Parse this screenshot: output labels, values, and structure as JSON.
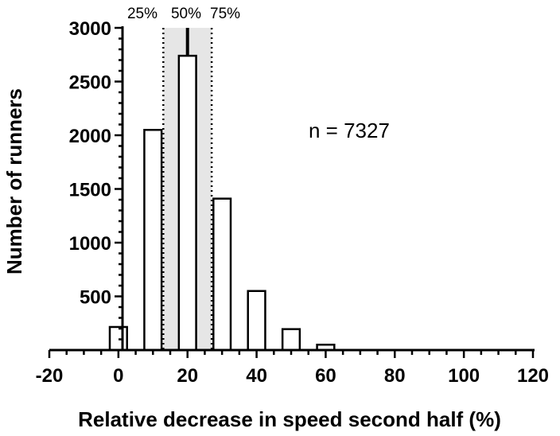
{
  "chart_data": {
    "type": "bar",
    "xlabel": "Relative decrease in speed second half (%)",
    "ylabel": "Number of runners",
    "xlim": [
      -20,
      120
    ],
    "ylim": [
      0,
      3000
    ],
    "x_ticks": [
      "-20",
      "0",
      "20",
      "40",
      "60",
      "80",
      "100",
      "120"
    ],
    "y_ticks": [
      "500",
      "1000",
      "1500",
      "2000",
      "2500",
      "3000"
    ],
    "bin_width": 5,
    "x": [
      0,
      10,
      20,
      30,
      40,
      50,
      60
    ],
    "values": [
      215,
      2050,
      2740,
      1410,
      550,
      195,
      50
    ],
    "quartiles": [
      {
        "label": "25%",
        "value": 13
      },
      {
        "label": "50%",
        "value": 20
      },
      {
        "label": "75%",
        "value": 27
      }
    ],
    "annotation": "n = 7327",
    "grid": false,
    "colors": {
      "bar_fill": "#ffffff",
      "bar_stroke": "#000000",
      "iqr_shade": "#e6e6e6"
    }
  }
}
